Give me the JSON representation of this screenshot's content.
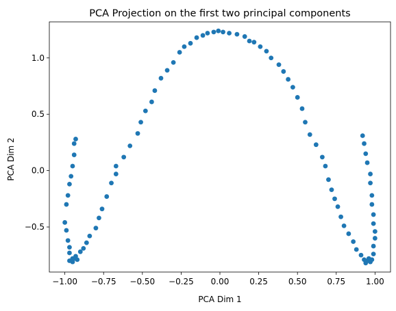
{
  "chart_data": {
    "type": "scatter",
    "title": "PCA Projection on the first two principal components",
    "xlabel": "PCA Dim 1",
    "ylabel": "PCA Dim 2",
    "xlim": [
      -1.1,
      1.1
    ],
    "ylim": [
      -0.9,
      1.32
    ],
    "xticks": [
      -1.0,
      -0.75,
      -0.5,
      -0.25,
      0.0,
      0.25,
      0.5,
      0.75,
      1.0
    ],
    "xtick_labels": [
      "−1.00",
      "−0.75",
      "−0.50",
      "−0.25",
      "0.00",
      "0.25",
      "0.50",
      "0.75",
      "1.00"
    ],
    "yticks": [
      -0.5,
      0.0,
      0.5,
      1.0
    ],
    "ytick_labels": [
      "−0.5",
      "0.0",
      "0.5",
      "1.0"
    ],
    "grid": false,
    "marker_color": "#1f77b4",
    "points": [
      [
        -0.93,
        0.28
      ],
      [
        -0.94,
        0.24
      ],
      [
        -0.94,
        0.14
      ],
      [
        -0.95,
        0.04
      ],
      [
        -0.96,
        -0.05
      ],
      [
        -0.97,
        -0.12
      ],
      [
        -0.98,
        -0.22
      ],
      [
        -0.99,
        -0.3
      ],
      [
        -1.0,
        -0.46
      ],
      [
        -0.99,
        -0.53
      ],
      [
        -0.98,
        -0.62
      ],
      [
        -0.97,
        -0.68
      ],
      [
        -0.97,
        -0.73
      ],
      [
        -0.97,
        -0.8
      ],
      [
        -0.95,
        -0.78
      ],
      [
        -0.95,
        -0.81
      ],
      [
        -0.94,
        -0.78
      ],
      [
        -0.93,
        -0.76
      ],
      [
        -0.92,
        -0.79
      ],
      [
        -0.9,
        -0.72
      ],
      [
        -0.88,
        -0.69
      ],
      [
        -0.86,
        -0.64
      ],
      [
        -0.84,
        -0.58
      ],
      [
        -0.8,
        -0.51
      ],
      [
        -0.78,
        -0.42
      ],
      [
        -0.76,
        -0.34
      ],
      [
        -0.73,
        -0.23
      ],
      [
        -0.7,
        -0.11
      ],
      [
        -0.67,
        -0.03
      ],
      [
        -0.67,
        0.04
      ],
      [
        -0.62,
        0.12
      ],
      [
        -0.58,
        0.22
      ],
      [
        -0.53,
        0.33
      ],
      [
        -0.51,
        0.43
      ],
      [
        -0.48,
        0.53
      ],
      [
        -0.44,
        0.61
      ],
      [
        -0.42,
        0.71
      ],
      [
        -0.38,
        0.82
      ],
      [
        -0.34,
        0.89
      ],
      [
        -0.3,
        0.96
      ],
      [
        -0.26,
        1.05
      ],
      [
        -0.23,
        1.1
      ],
      [
        -0.19,
        1.13
      ],
      [
        -0.15,
        1.18
      ],
      [
        -0.11,
        1.2
      ],
      [
        -0.08,
        1.22
      ],
      [
        -0.04,
        1.23
      ],
      [
        -0.01,
        1.24
      ],
      [
        0.02,
        1.23
      ],
      [
        0.06,
        1.22
      ],
      [
        0.11,
        1.21
      ],
      [
        0.16,
        1.19
      ],
      [
        0.19,
        1.15
      ],
      [
        0.22,
        1.14
      ],
      [
        0.26,
        1.1
      ],
      [
        0.3,
        1.06
      ],
      [
        0.33,
        1.0
      ],
      [
        0.38,
        0.94
      ],
      [
        0.41,
        0.88
      ],
      [
        0.44,
        0.81
      ],
      [
        0.47,
        0.74
      ],
      [
        0.5,
        0.65
      ],
      [
        0.53,
        0.55
      ],
      [
        0.55,
        0.43
      ],
      [
        0.58,
        0.32
      ],
      [
        0.62,
        0.23
      ],
      [
        0.66,
        0.12
      ],
      [
        0.68,
        0.04
      ],
      [
        0.7,
        -0.08
      ],
      [
        0.72,
        -0.17
      ],
      [
        0.74,
        -0.25
      ],
      [
        0.76,
        -0.32
      ],
      [
        0.78,
        -0.41
      ],
      [
        0.8,
        -0.49
      ],
      [
        0.83,
        -0.56
      ],
      [
        0.86,
        -0.63
      ],
      [
        0.88,
        -0.7
      ],
      [
        0.91,
        -0.75
      ],
      [
        0.93,
        -0.79
      ],
      [
        0.94,
        -0.82
      ],
      [
        0.95,
        -0.8
      ],
      [
        0.96,
        -0.78
      ],
      [
        0.97,
        -0.81
      ],
      [
        0.98,
        -0.79
      ],
      [
        0.99,
        -0.74
      ],
      [
        0.99,
        -0.67
      ],
      [
        1.0,
        -0.6
      ],
      [
        1.0,
        -0.54
      ],
      [
        0.99,
        -0.47
      ],
      [
        0.99,
        -0.39
      ],
      [
        0.98,
        -0.3
      ],
      [
        0.98,
        -0.22
      ],
      [
        0.97,
        -0.11
      ],
      [
        0.97,
        -0.03
      ],
      [
        0.95,
        0.07
      ],
      [
        0.94,
        0.15
      ],
      [
        0.93,
        0.24
      ],
      [
        0.92,
        0.31
      ]
    ]
  }
}
